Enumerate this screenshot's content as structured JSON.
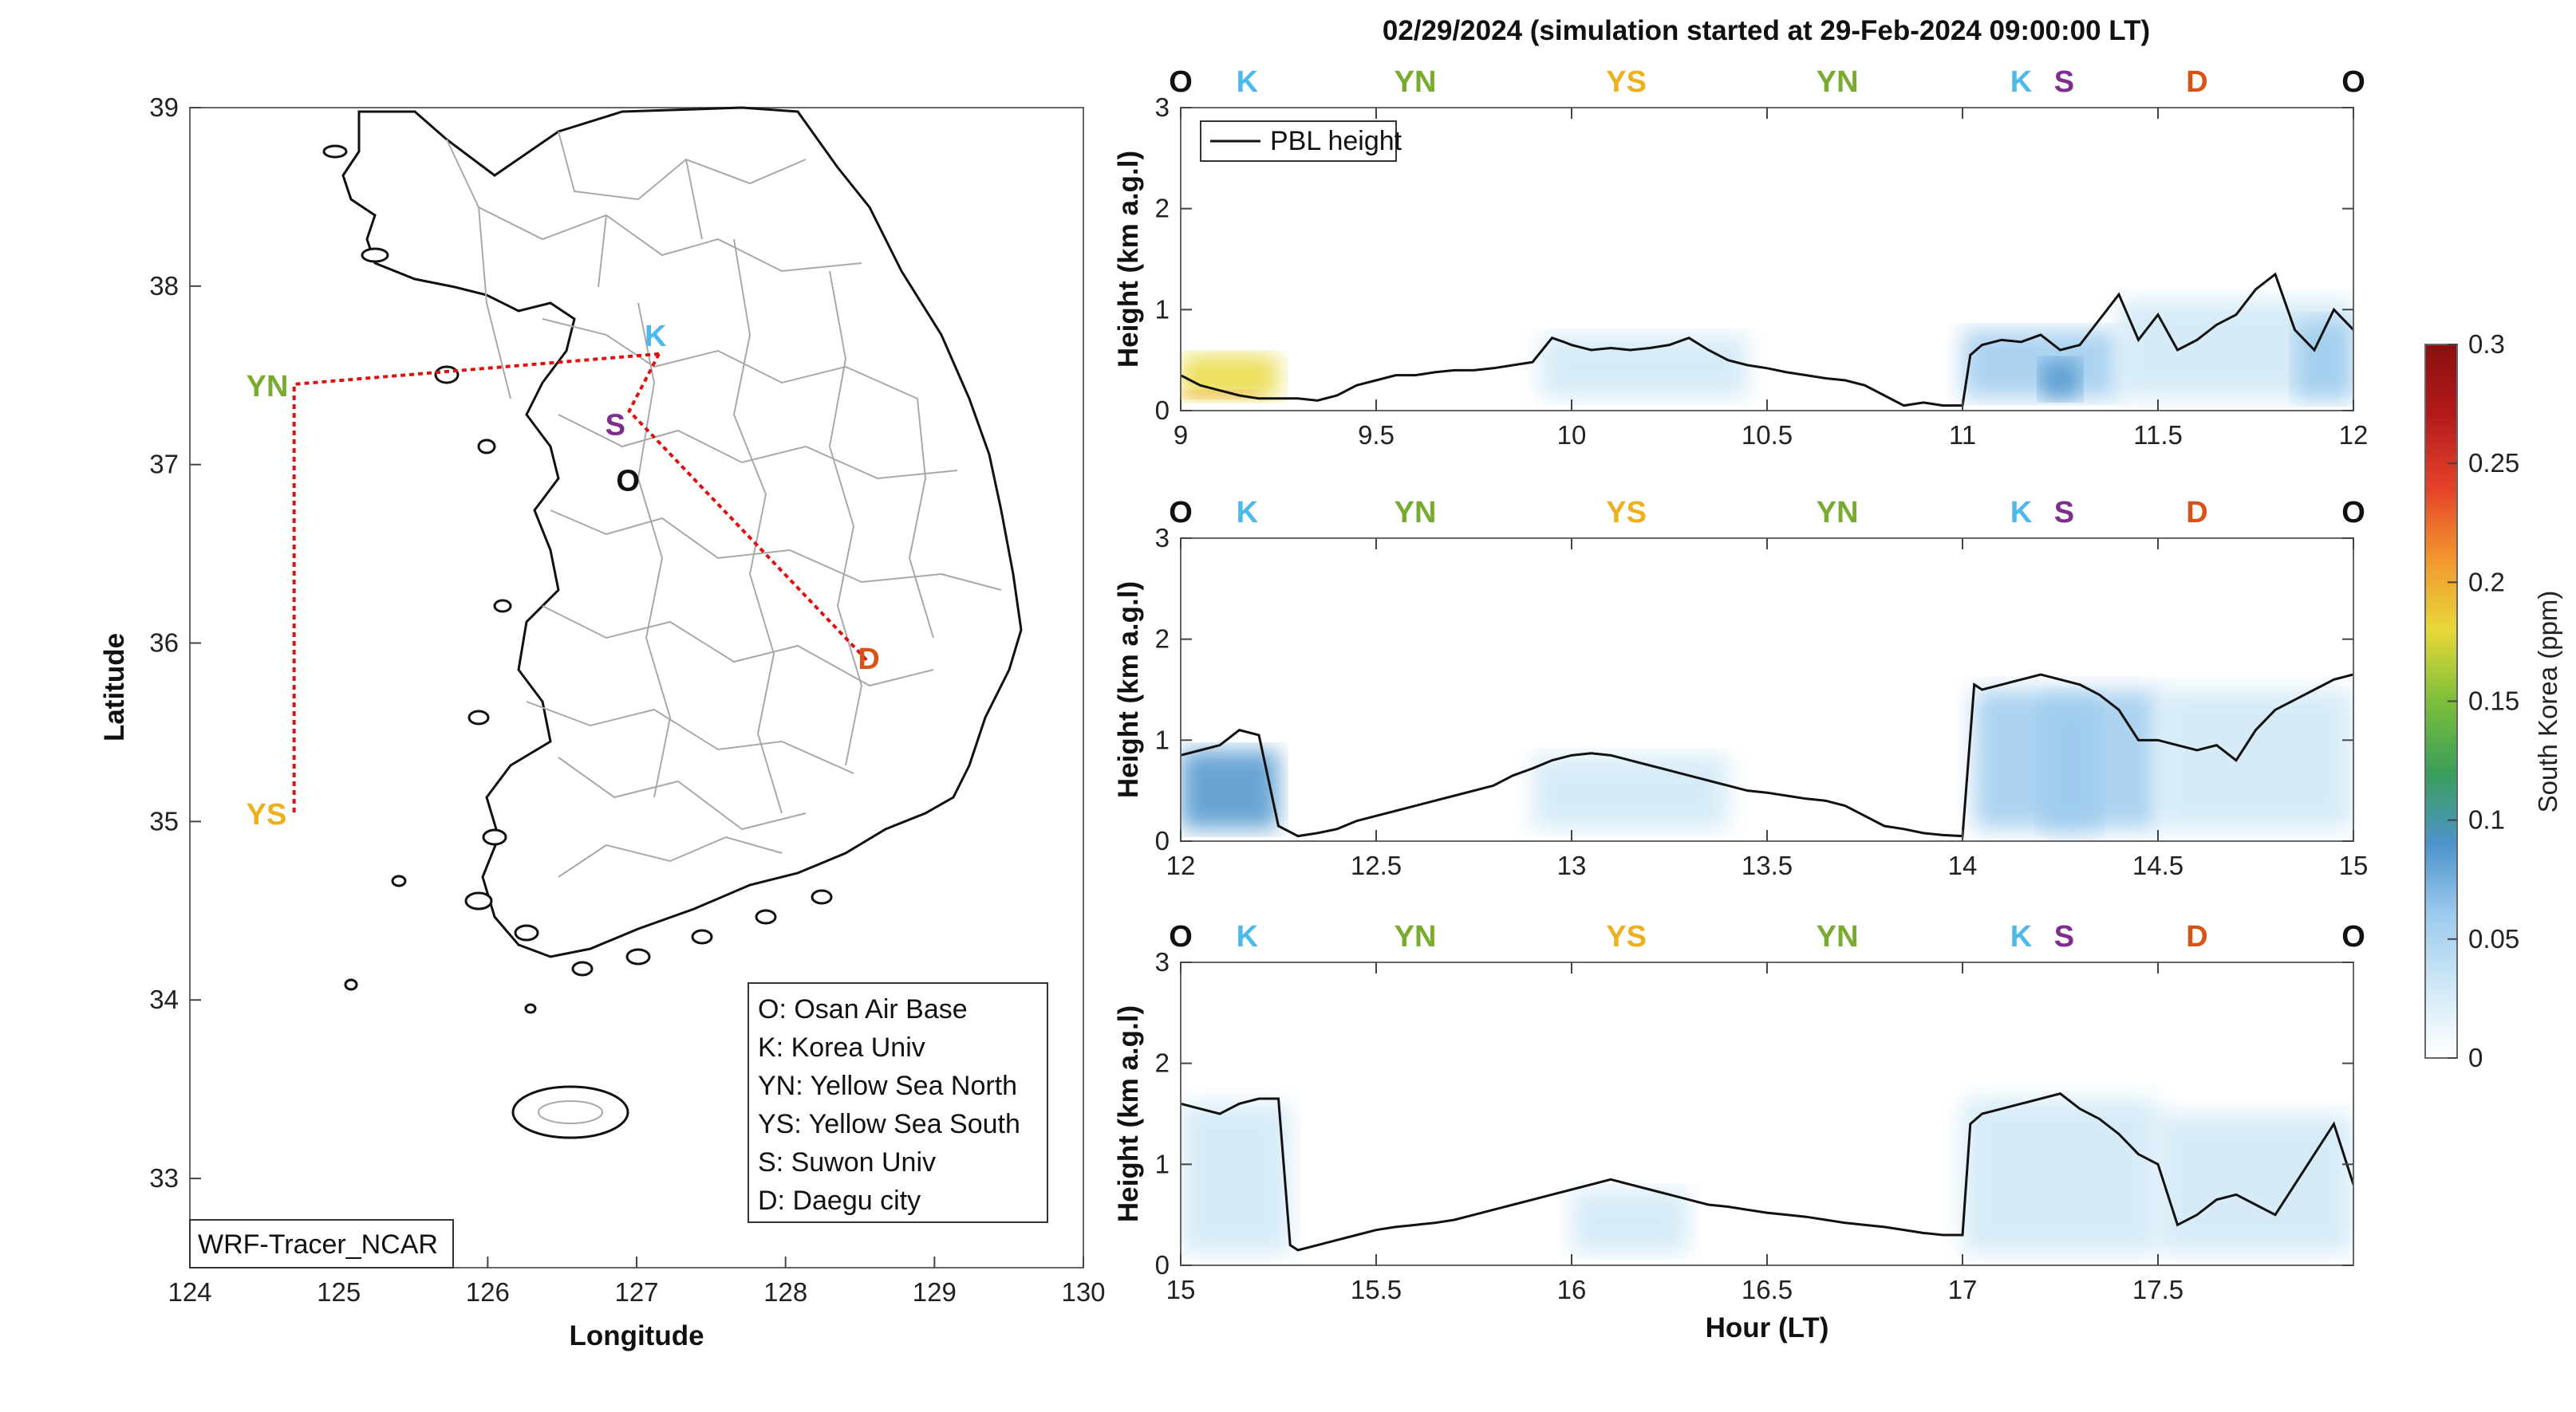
{
  "figure": {
    "title": "02/29/2024 (simulation started at 29-Feb-2024 09:00:00 LT)"
  },
  "colors": {
    "O": "#111111",
    "K": "#4db8ea",
    "YN": "#77ac30",
    "YS": "#edb120",
    "S": "#7e2f8e",
    "D": "#d95319",
    "route": "#dd1111",
    "pbl": "#111111"
  },
  "map": {
    "xlabel": "Longitude",
    "ylabel": "Latitude",
    "xticks": [
      "124",
      "125",
      "126",
      "127",
      "128",
      "129",
      "130"
    ],
    "yticks": [
      "33",
      "34",
      "35",
      "36",
      "37",
      "38",
      "39"
    ],
    "xlim": [
      124,
      130
    ],
    "ylim": [
      32.5,
      39
    ],
    "model_label": "WRF-Tracer_NCAR",
    "legend": [
      "O: Osan Air Base",
      "K: Korea Univ",
      "YN: Yellow Sea North",
      "YS: Yellow Sea South",
      "S: Suwon Univ",
      "D: Daegu city"
    ],
    "sites": [
      {
        "id": "YN",
        "label": "YN",
        "lon": 124.7,
        "lat": 37.45
      },
      {
        "id": "YS",
        "label": "YS",
        "lon": 124.7,
        "lat": 35.05
      },
      {
        "id": "K",
        "label": "K",
        "lon": 127.15,
        "lat": 37.62
      },
      {
        "id": "S",
        "label": "S",
        "lon": 126.95,
        "lat": 37.3
      },
      {
        "id": "O",
        "label": "O",
        "lon": 127.05,
        "lat": 37.1
      },
      {
        "id": "D",
        "label": "D",
        "lon": 128.55,
        "lat": 35.9
      }
    ],
    "route": [
      {
        "lon": 127.15,
        "lat": 37.62
      },
      {
        "lon": 124.7,
        "lat": 37.45
      },
      {
        "lon": 124.7,
        "lat": 35.05
      }
    ],
    "route2": [
      {
        "lon": 127.15,
        "lat": 37.62
      },
      {
        "lon": 126.95,
        "lat": 37.3
      },
      {
        "lon": 128.55,
        "lat": 35.9
      }
    ]
  },
  "chart_data": [
    {
      "type": "area",
      "xlim": [
        9,
        12
      ],
      "xticks": [
        "9",
        "9.5",
        "10",
        "10.5",
        "11",
        "11.5",
        "12"
      ],
      "ylim": [
        0,
        3
      ],
      "yticks": [
        "0",
        "1",
        "2",
        "3"
      ],
      "ylabel": "Height (km a.g.l)",
      "legend": [
        "PBL height"
      ],
      "site_labels": [
        {
          "label": "O",
          "id": "O",
          "x": 9.0
        },
        {
          "label": "K",
          "id": "K",
          "x": 9.17
        },
        {
          "label": "YN",
          "id": "YN",
          "x": 9.6
        },
        {
          "label": "YS",
          "id": "YS",
          "x": 10.14
        },
        {
          "label": "YN",
          "id": "YN",
          "x": 10.68
        },
        {
          "label": "K",
          "id": "K",
          "x": 11.15
        },
        {
          "label": "S",
          "id": "S",
          "x": 11.26
        },
        {
          "label": "D",
          "id": "D",
          "x": 11.6
        },
        {
          "label": "O",
          "id": "O",
          "x": 12.0
        }
      ],
      "pbl": {
        "x": [
          9.0,
          9.05,
          9.1,
          9.15,
          9.2,
          9.25,
          9.3,
          9.35,
          9.4,
          9.45,
          9.5,
          9.55,
          9.6,
          9.65,
          9.7,
          9.75,
          9.8,
          9.85,
          9.9,
          9.95,
          9.98,
          10.0,
          10.05,
          10.1,
          10.15,
          10.2,
          10.25,
          10.3,
          10.35,
          10.4,
          10.45,
          10.5,
          10.55,
          10.6,
          10.65,
          10.7,
          10.75,
          10.8,
          10.85,
          10.9,
          10.95,
          11.0,
          11.02,
          11.05,
          11.1,
          11.15,
          11.2,
          11.25,
          11.3,
          11.35,
          11.4,
          11.45,
          11.5,
          11.55,
          11.6,
          11.65,
          11.7,
          11.75,
          11.8,
          11.85,
          11.9,
          11.95,
          12.0
        ],
        "y": [
          0.35,
          0.25,
          0.2,
          0.15,
          0.12,
          0.12,
          0.12,
          0.1,
          0.15,
          0.25,
          0.3,
          0.35,
          0.35,
          0.38,
          0.4,
          0.4,
          0.42,
          0.45,
          0.48,
          0.72,
          0.68,
          0.65,
          0.6,
          0.62,
          0.6,
          0.62,
          0.65,
          0.72,
          0.6,
          0.5,
          0.45,
          0.42,
          0.38,
          0.35,
          0.32,
          0.3,
          0.25,
          0.15,
          0.05,
          0.08,
          0.05,
          0.05,
          0.55,
          0.65,
          0.7,
          0.68,
          0.75,
          0.6,
          0.65,
          0.9,
          1.15,
          0.7,
          0.95,
          0.6,
          0.7,
          0.85,
          0.95,
          1.2,
          1.35,
          0.8,
          0.6,
          1.0,
          0.8
        ]
      },
      "plumes": [
        {
          "x0": 9.0,
          "x1": 9.25,
          "top": 0.55,
          "level": 0.18
        },
        {
          "x0": 9.0,
          "x1": 9.2,
          "top": 0.2,
          "level": 0.2
        },
        {
          "x0": 9.92,
          "x1": 10.45,
          "top": 0.75,
          "level": 0.035
        },
        {
          "x0": 11.0,
          "x1": 11.4,
          "top": 0.8,
          "level": 0.06
        },
        {
          "x0": 11.2,
          "x1": 11.3,
          "top": 0.5,
          "level": 0.1
        },
        {
          "x0": 11.4,
          "x1": 12.0,
          "top": 1.1,
          "level": 0.03
        },
        {
          "x0": 11.85,
          "x1": 12.0,
          "top": 0.9,
          "level": 0.05
        }
      ]
    },
    {
      "type": "area",
      "xlim": [
        12,
        15
      ],
      "xticks": [
        "12",
        "12.5",
        "13",
        "13.5",
        "14",
        "14.5",
        "15"
      ],
      "ylim": [
        0,
        3
      ],
      "yticks": [
        "0",
        "1",
        "2",
        "3"
      ],
      "ylabel": "Height (km a.g.l)",
      "site_labels": [
        {
          "label": "O",
          "id": "O",
          "x": 12.0
        },
        {
          "label": "K",
          "id": "K",
          "x": 12.17
        },
        {
          "label": "YN",
          "id": "YN",
          "x": 12.6
        },
        {
          "label": "YS",
          "id": "YS",
          "x": 13.14
        },
        {
          "label": "YN",
          "id": "YN",
          "x": 13.68
        },
        {
          "label": "K",
          "id": "K",
          "x": 14.15
        },
        {
          "label": "S",
          "id": "S",
          "x": 14.26
        },
        {
          "label": "D",
          "id": "D",
          "x": 14.6
        },
        {
          "label": "O",
          "id": "O",
          "x": 15.0
        }
      ],
      "pbl": {
        "x": [
          12.0,
          12.05,
          12.1,
          12.15,
          12.2,
          12.25,
          12.3,
          12.35,
          12.4,
          12.45,
          12.5,
          12.55,
          12.6,
          12.65,
          12.7,
          12.75,
          12.8,
          12.85,
          12.9,
          12.95,
          13.0,
          13.05,
          13.1,
          13.15,
          13.2,
          13.25,
          13.3,
          13.35,
          13.4,
          13.45,
          13.5,
          13.55,
          13.6,
          13.65,
          13.7,
          13.75,
          13.8,
          13.85,
          13.9,
          13.95,
          14.0,
          14.03,
          14.05,
          14.1,
          14.15,
          14.2,
          14.25,
          14.3,
          14.35,
          14.4,
          14.45,
          14.5,
          14.55,
          14.6,
          14.65,
          14.7,
          14.75,
          14.8,
          14.85,
          14.9,
          14.95,
          15.0
        ],
        "y": [
          0.85,
          0.9,
          0.95,
          1.1,
          1.05,
          0.15,
          0.05,
          0.08,
          0.12,
          0.2,
          0.25,
          0.3,
          0.35,
          0.4,
          0.45,
          0.5,
          0.55,
          0.65,
          0.72,
          0.8,
          0.85,
          0.87,
          0.85,
          0.8,
          0.75,
          0.7,
          0.65,
          0.6,
          0.55,
          0.5,
          0.48,
          0.45,
          0.42,
          0.4,
          0.35,
          0.25,
          0.15,
          0.12,
          0.08,
          0.06,
          0.05,
          1.55,
          1.5,
          1.55,
          1.6,
          1.65,
          1.6,
          1.55,
          1.45,
          1.3,
          1.0,
          1.0,
          0.95,
          0.9,
          0.95,
          0.8,
          1.1,
          1.3,
          1.4,
          1.5,
          1.6,
          1.65
        ]
      },
      "plumes": [
        {
          "x0": 12.0,
          "x1": 12.25,
          "top": 0.9,
          "level": 0.08
        },
        {
          "x0": 12.9,
          "x1": 13.4,
          "top": 0.85,
          "level": 0.025
        },
        {
          "x0": 14.03,
          "x1": 14.5,
          "top": 1.5,
          "level": 0.045
        },
        {
          "x0": 14.2,
          "x1": 14.35,
          "top": 1.4,
          "level": 0.06
        },
        {
          "x0": 14.5,
          "x1": 15.0,
          "top": 1.5,
          "level": 0.03
        }
      ]
    },
    {
      "type": "area",
      "xlim": [
        15,
        18
      ],
      "xticks": [
        "15",
        "15.5",
        "16",
        "16.5",
        "17",
        "17.5"
      ],
      "ylim": [
        0,
        3
      ],
      "yticks": [
        "0",
        "1",
        "2",
        "3"
      ],
      "ylabel": "Height (km a.g.l)",
      "xlabel": "Hour (LT)",
      "site_labels": [
        {
          "label": "O",
          "id": "O",
          "x": 15.0
        },
        {
          "label": "K",
          "id": "K",
          "x": 15.17
        },
        {
          "label": "YN",
          "id": "YN",
          "x": 15.6
        },
        {
          "label": "YS",
          "id": "YS",
          "x": 16.14
        },
        {
          "label": "YN",
          "id": "YN",
          "x": 16.68
        },
        {
          "label": "K",
          "id": "K",
          "x": 17.15
        },
        {
          "label": "S",
          "id": "S",
          "x": 17.26
        },
        {
          "label": "D",
          "id": "D",
          "x": 17.6
        },
        {
          "label": "O",
          "id": "O",
          "x": 18.0
        }
      ],
      "pbl": {
        "x": [
          15.0,
          15.05,
          15.1,
          15.15,
          15.2,
          15.25,
          15.28,
          15.3,
          15.35,
          15.4,
          15.45,
          15.5,
          15.55,
          15.6,
          15.65,
          15.7,
          15.75,
          15.8,
          15.85,
          15.9,
          15.95,
          16.0,
          16.05,
          16.1,
          16.15,
          16.2,
          16.25,
          16.3,
          16.35,
          16.4,
          16.45,
          16.5,
          16.55,
          16.6,
          16.65,
          16.7,
          16.75,
          16.8,
          16.85,
          16.9,
          16.95,
          17.0,
          17.02,
          17.05,
          17.1,
          17.15,
          17.2,
          17.25,
          17.3,
          17.35,
          17.4,
          17.45,
          17.5,
          17.55,
          17.6,
          17.65,
          17.7,
          17.75,
          17.8,
          17.85,
          17.9,
          17.95,
          18.0
        ],
        "y": [
          1.6,
          1.55,
          1.5,
          1.6,
          1.65,
          1.65,
          0.2,
          0.15,
          0.2,
          0.25,
          0.3,
          0.35,
          0.38,
          0.4,
          0.42,
          0.45,
          0.5,
          0.55,
          0.6,
          0.65,
          0.7,
          0.75,
          0.8,
          0.85,
          0.8,
          0.75,
          0.7,
          0.65,
          0.6,
          0.58,
          0.55,
          0.52,
          0.5,
          0.48,
          0.45,
          0.42,
          0.4,
          0.38,
          0.35,
          0.32,
          0.3,
          0.3,
          1.4,
          1.5,
          1.55,
          1.6,
          1.65,
          1.7,
          1.55,
          1.45,
          1.3,
          1.1,
          1.0,
          0.4,
          0.5,
          0.65,
          0.7,
          0.6,
          0.5,
          0.8,
          1.1,
          1.4,
          0.8
        ]
      },
      "plumes": [
        {
          "x0": 15.0,
          "x1": 15.28,
          "top": 1.6,
          "level": 0.04
        },
        {
          "x0": 16.0,
          "x1": 16.3,
          "top": 0.75,
          "level": 0.02
        },
        {
          "x0": 17.0,
          "x1": 17.5,
          "top": 1.65,
          "level": 0.04
        },
        {
          "x0": 17.5,
          "x1": 18.0,
          "top": 1.5,
          "level": 0.03
        }
      ]
    }
  ],
  "colorbar": {
    "label": "South Korea (ppm)",
    "ticks": [
      "0",
      "0.05",
      "0.1",
      "0.15",
      "0.2",
      "0.25",
      "0.3"
    ],
    "range": [
      0,
      0.3
    ],
    "stops": [
      "#ffffff",
      "#cfe8f6",
      "#9dcbee",
      "#4d94cc",
      "#3a9e5a",
      "#7cbf3a",
      "#e8d83a",
      "#f2962e",
      "#e4422a",
      "#b31b1b",
      "#8b0f0f"
    ]
  }
}
